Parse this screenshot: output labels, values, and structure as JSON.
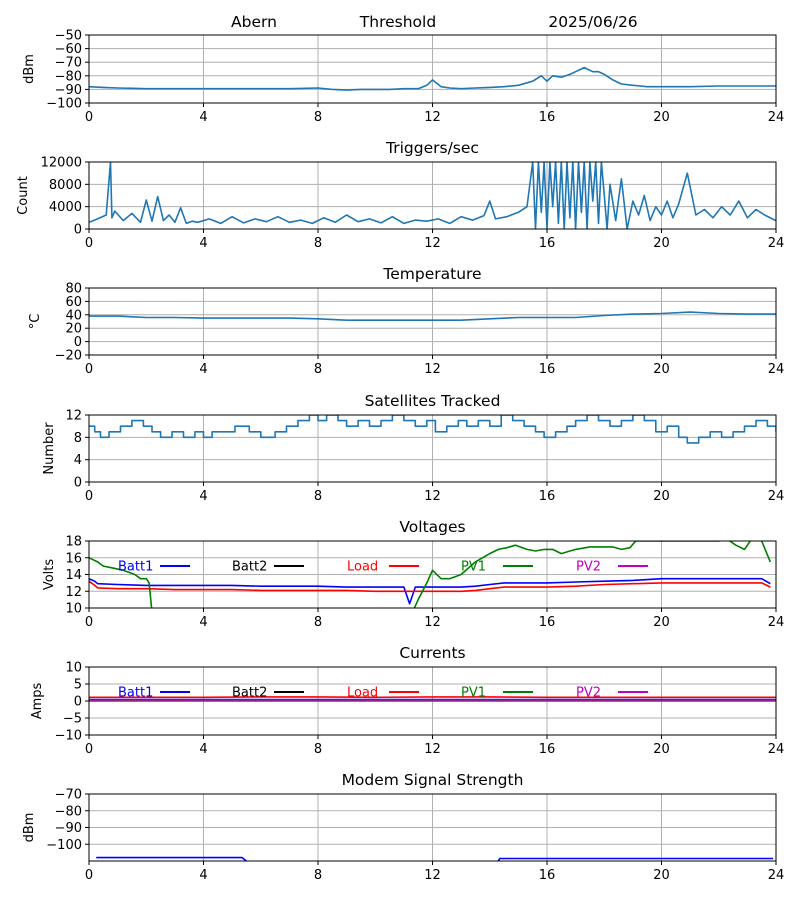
{
  "header": {
    "station": "Abern",
    "mode": "Threshold",
    "date": "2025/06/26"
  },
  "chart_data": [
    {
      "id": "threshold",
      "type": "line",
      "title": "",
      "ylabel": "dBm",
      "xlim": [
        0,
        24
      ],
      "ylim": [
        -100,
        -50
      ],
      "xticks": [
        0,
        4,
        8,
        12,
        16,
        20,
        24
      ],
      "yticks": [
        -100,
        -90,
        -80,
        -70,
        -60,
        -50
      ],
      "grid": true,
      "series": [
        {
          "color": "#1f77b4",
          "x": [
            0,
            0.5,
            1,
            2,
            3,
            4,
            5,
            6,
            7,
            8,
            8.5,
            9,
            9.5,
            10,
            10.5,
            11,
            11.5,
            11.8,
            12,
            12.3,
            12.6,
            13,
            13.5,
            14,
            14.5,
            15,
            15.5,
            15.8,
            16,
            16.2,
            16.5,
            16.8,
            17,
            17.3,
            17.6,
            17.8,
            18,
            18.3,
            18.6,
            19,
            19.5,
            20,
            21,
            22,
            23,
            24
          ],
          "y": [
            -88,
            -88.5,
            -89,
            -89.5,
            -89.5,
            -89.5,
            -89.5,
            -89.5,
            -89.5,
            -89,
            -90,
            -90.5,
            -90,
            -90,
            -90,
            -89.5,
            -89.5,
            -87,
            -83,
            -88,
            -89,
            -89.5,
            -89,
            -88.5,
            -88,
            -87,
            -84,
            -80,
            -84,
            -80,
            -81,
            -79,
            -77,
            -74,
            -77,
            -77,
            -79,
            -83,
            -86,
            -87,
            -88,
            -88,
            -88,
            -87.5,
            -87.5,
            -87.5
          ]
        }
      ]
    },
    {
      "id": "triggers",
      "type": "line",
      "title": "Triggers/sec",
      "ylabel": "Count",
      "xlim": [
        0,
        24
      ],
      "ylim": [
        0,
        12000
      ],
      "xticks": [
        0,
        4,
        8,
        12,
        16,
        20,
        24
      ],
      "yticks": [
        0,
        4000,
        8000,
        12000
      ],
      "grid": true,
      "series": [
        {
          "color": "#1f77b4",
          "x": [
            0,
            0.3,
            0.6,
            0.75,
            0.8,
            0.9,
            1.2,
            1.5,
            1.8,
            2.0,
            2.2,
            2.4,
            2.6,
            2.8,
            3.0,
            3.2,
            3.4,
            3.6,
            3.8,
            4.2,
            4.6,
            5.0,
            5.4,
            5.8,
            6.2,
            6.6,
            7.0,
            7.4,
            7.8,
            8.2,
            8.6,
            9.0,
            9.4,
            9.8,
            10.2,
            10.6,
            11.0,
            11.4,
            11.8,
            12.2,
            12.6,
            13.0,
            13.4,
            13.8,
            14.0,
            14.2,
            14.6,
            15.0,
            15.3,
            15.5,
            15.6,
            15.7,
            15.8,
            15.9,
            16.0,
            16.1,
            16.2,
            16.3,
            16.4,
            16.5,
            16.6,
            16.7,
            16.8,
            16.9,
            17.0,
            17.1,
            17.2,
            17.3,
            17.4,
            17.5,
            17.6,
            17.7,
            17.8,
            17.9,
            18.0,
            18.1,
            18.2,
            18.4,
            18.6,
            18.8,
            19.0,
            19.2,
            19.4,
            19.6,
            19.8,
            20.0,
            20.2,
            20.4,
            20.6,
            20.9,
            21.2,
            21.5,
            21.8,
            22.1,
            22.4,
            22.7,
            23.0,
            23.3,
            23.6,
            24.0
          ],
          "y": [
            1200,
            1800,
            2500,
            12000,
            2000,
            3200,
            1500,
            2800,
            1200,
            5200,
            1400,
            5800,
            1500,
            2500,
            1200,
            3800,
            1000,
            1400,
            1200,
            1800,
            1000,
            2200,
            1100,
            1800,
            1300,
            2200,
            1200,
            1600,
            1000,
            2000,
            1200,
            2500,
            1300,
            1800,
            1100,
            2200,
            1000,
            1600,
            1400,
            1800,
            1000,
            2200,
            1600,
            2400,
            5000,
            1800,
            2200,
            3000,
            4000,
            12000,
            0,
            12000,
            3000,
            12000,
            0,
            12000,
            4000,
            12000,
            1000,
            12000,
            0,
            12000,
            2000,
            12000,
            0,
            12000,
            3000,
            12000,
            0,
            12000,
            5000,
            12000,
            1000,
            12000,
            6000,
            0,
            8000,
            1500,
            9000,
            0,
            5000,
            2500,
            6000,
            1500,
            4000,
            2500,
            5000,
            2000,
            4500,
            10000,
            2500,
            3500,
            2000,
            4000,
            2500,
            5000,
            2000,
            3500,
            2500,
            1500
          ]
        }
      ]
    },
    {
      "id": "temperature",
      "type": "line",
      "title": "Temperature",
      "ylabel": "°C",
      "xlim": [
        0,
        24
      ],
      "ylim": [
        -20,
        80
      ],
      "xticks": [
        0,
        4,
        8,
        12,
        16,
        20,
        24
      ],
      "yticks": [
        -20,
        0,
        20,
        40,
        60,
        80
      ],
      "grid": true,
      "series": [
        {
          "color": "#1f77b4",
          "x": [
            0,
            1,
            2,
            3,
            4,
            5,
            6,
            7,
            8,
            9,
            10,
            11,
            12,
            13,
            14,
            15,
            16,
            17,
            18,
            19,
            20,
            21,
            22,
            23,
            24
          ],
          "y": [
            38,
            38,
            36,
            36,
            35,
            35,
            35,
            35,
            34,
            32,
            32,
            32,
            32,
            32,
            34,
            36,
            36,
            36,
            39,
            41,
            42,
            44,
            42,
            41,
            41
          ]
        }
      ]
    },
    {
      "id": "satellites",
      "type": "line",
      "title": "Satellites Tracked",
      "ylabel": "Number",
      "xlim": [
        0,
        24
      ],
      "ylim": [
        0,
        12
      ],
      "xticks": [
        0,
        4,
        8,
        12,
        16,
        20,
        24
      ],
      "yticks": [
        0,
        4,
        8,
        12
      ],
      "grid": true,
      "series": [
        {
          "color": "#1f77b4",
          "step": true,
          "x": [
            0,
            0.2,
            0.4,
            0.7,
            1.1,
            1.5,
            1.9,
            2.2,
            2.5,
            2.9,
            3.3,
            3.7,
            4.0,
            4.3,
            4.7,
            5.1,
            5.6,
            6.0,
            6.5,
            6.9,
            7.3,
            7.7,
            8.0,
            8.3,
            8.7,
            9.0,
            9.4,
            9.8,
            10.2,
            10.6,
            11.0,
            11.4,
            11.8,
            12.1,
            12.5,
            12.9,
            13.2,
            13.6,
            14.0,
            14.4,
            14.8,
            15.2,
            15.6,
            15.9,
            16.3,
            16.7,
            17.0,
            17.4,
            17.8,
            18.2,
            18.6,
            19.0,
            19.4,
            19.8,
            20.2,
            20.6,
            20.9,
            21.3,
            21.7,
            22.1,
            22.5,
            22.9,
            23.3,
            23.7,
            24.0
          ],
          "y": [
            10,
            9,
            8,
            9,
            10,
            11,
            10,
            9,
            8,
            9,
            8,
            9,
            8,
            9,
            9,
            10,
            9,
            8,
            9,
            10,
            11,
            12,
            11,
            12,
            11,
            10,
            11,
            10,
            11,
            12,
            11,
            10,
            11,
            9,
            10,
            11,
            10,
            11,
            10,
            12,
            11,
            10,
            9,
            8,
            9,
            10,
            11,
            12,
            11,
            10,
            11,
            12,
            11,
            9,
            10,
            8,
            7,
            8,
            9,
            8,
            9,
            10,
            11,
            10,
            9
          ]
        }
      ]
    },
    {
      "id": "voltages",
      "type": "line",
      "title": "Voltages",
      "ylabel": "Volts",
      "xlim": [
        0,
        24
      ],
      "ylim": [
        10,
        18
      ],
      "xticks": [
        0,
        4,
        8,
        12,
        16,
        20,
        24
      ],
      "yticks": [
        10,
        12,
        14,
        16,
        18
      ],
      "grid": true,
      "legend": "top-inline",
      "series": [
        {
          "name": "Batt1",
          "color": "#0000ff",
          "x": [
            0,
            0.2,
            0.3,
            1,
            2,
            3,
            4,
            5,
            6,
            7,
            8,
            9,
            10,
            11,
            11.2,
            11.4,
            11.6,
            12,
            12.5,
            13,
            13.5,
            14,
            14.5,
            15,
            16,
            17,
            18,
            19,
            20,
            21,
            22,
            23,
            23.5,
            23.8
          ],
          "y": [
            13.5,
            13.2,
            12.9,
            12.8,
            12.7,
            12.7,
            12.7,
            12.7,
            12.6,
            12.6,
            12.6,
            12.5,
            12.5,
            12.5,
            10.5,
            12.5,
            12.5,
            12.5,
            12.5,
            12.5,
            12.6,
            12.8,
            13.0,
            13.0,
            13.0,
            13.1,
            13.2,
            13.3,
            13.5,
            13.5,
            13.5,
            13.5,
            13.5,
            12.9
          ]
        },
        {
          "name": "Batt2",
          "color": "#000000",
          "x": [],
          "y": []
        },
        {
          "name": "Load",
          "color": "#ff0000",
          "x": [
            0,
            0.2,
            0.3,
            1,
            2,
            3,
            4,
            5,
            6,
            7,
            8,
            9,
            10,
            11,
            12,
            12.5,
            13,
            13.5,
            14,
            14.5,
            15,
            16,
            17,
            18,
            19,
            20,
            21,
            22,
            23,
            23.5,
            23.8
          ],
          "y": [
            13.2,
            12.7,
            12.4,
            12.3,
            12.3,
            12.2,
            12.2,
            12.2,
            12.1,
            12.1,
            12.1,
            12.1,
            12.0,
            12.0,
            12.0,
            12.0,
            12.0,
            12.1,
            12.3,
            12.5,
            12.5,
            12.5,
            12.6,
            12.8,
            12.9,
            13.0,
            13.0,
            13.0,
            13.0,
            13.0,
            12.5
          ]
        },
        {
          "name": "PV1",
          "color": "#008000",
          "x": [
            0,
            0.3,
            0.5,
            0.8,
            1.2,
            1.6,
            1.8,
            2.0,
            2.1,
            2.2,
            11.3,
            11.5,
            11.8,
            12.0,
            12.3,
            12.6,
            13.0,
            13.5,
            14.0,
            14.3,
            14.6,
            14.9,
            15.3,
            15.6,
            15.9,
            16.2,
            16.5,
            16.8,
            17.0,
            17.5,
            18.0,
            18.3,
            18.6,
            18.9,
            19.1,
            22.0,
            22.3,
            22.6,
            22.9,
            23.2,
            23.5,
            23.8
          ],
          "y": [
            16.0,
            15.5,
            15.0,
            14.8,
            14.5,
            14.0,
            13.5,
            13.5,
            13.0,
            9.5,
            9.5,
            11.0,
            13.0,
            14.5,
            13.5,
            13.5,
            14.0,
            15.5,
            16.5,
            17.0,
            17.2,
            17.5,
            17.0,
            16.8,
            17.0,
            17.0,
            16.5,
            16.8,
            17.0,
            17.3,
            17.3,
            17.3,
            17.0,
            17.2,
            18.0,
            18.0,
            18.2,
            17.5,
            17.0,
            18.5,
            18.0,
            15.5
          ]
        },
        {
          "name": "PV2",
          "color": "#c000c0",
          "x": [],
          "y": []
        }
      ]
    },
    {
      "id": "currents",
      "type": "line",
      "title": "Currents",
      "ylabel": "Amps",
      "xlim": [
        0,
        24
      ],
      "ylim": [
        -10,
        10
      ],
      "xticks": [
        0,
        4,
        8,
        12,
        16,
        20,
        24
      ],
      "yticks": [
        -10,
        -5,
        0,
        5,
        10
      ],
      "grid": true,
      "legend": "top-inline",
      "series": [
        {
          "name": "Batt1",
          "color": "#0000ff",
          "x": [
            0,
            24
          ],
          "y": [
            0.4,
            0.4
          ]
        },
        {
          "name": "Batt2",
          "color": "#000000",
          "x": [],
          "y": []
        },
        {
          "name": "Load",
          "color": "#ff0000",
          "x": [
            0,
            2,
            4,
            6,
            8,
            10,
            12,
            14,
            16,
            18,
            20,
            22,
            24
          ],
          "y": [
            1.1,
            1.1,
            1.1,
            1.2,
            1.2,
            1.1,
            1.2,
            1.2,
            1.1,
            1.1,
            1.1,
            1.1,
            1.1
          ]
        },
        {
          "name": "PV1",
          "color": "#008000",
          "x": [
            0,
            24
          ],
          "y": [
            0.3,
            0.3
          ]
        },
        {
          "name": "PV2",
          "color": "#c000c0",
          "x": [
            0,
            24
          ],
          "y": [
            0.0,
            0.0
          ]
        }
      ]
    },
    {
      "id": "modem",
      "type": "line",
      "title": "Modem Signal Strength",
      "ylabel": "dBm",
      "xlim": [
        0,
        24
      ],
      "ylim": [
        -110,
        -70
      ],
      "xticks": [
        0,
        4,
        8,
        12,
        16,
        20,
        24
      ],
      "yticks": [
        -100,
        -90,
        -80,
        -70
      ],
      "grid": true,
      "series": [
        {
          "color": "#0000ff",
          "segments": [
            {
              "x": [
                0.25,
                5.35,
                5.5
              ],
              "y": [
                -108,
                -108,
                -110
              ]
            },
            {
              "x": [
                14.3,
                14.35,
                23.9
              ],
              "y": [
                -110,
                -108.5,
                -108.5
              ]
            }
          ]
        }
      ]
    }
  ]
}
